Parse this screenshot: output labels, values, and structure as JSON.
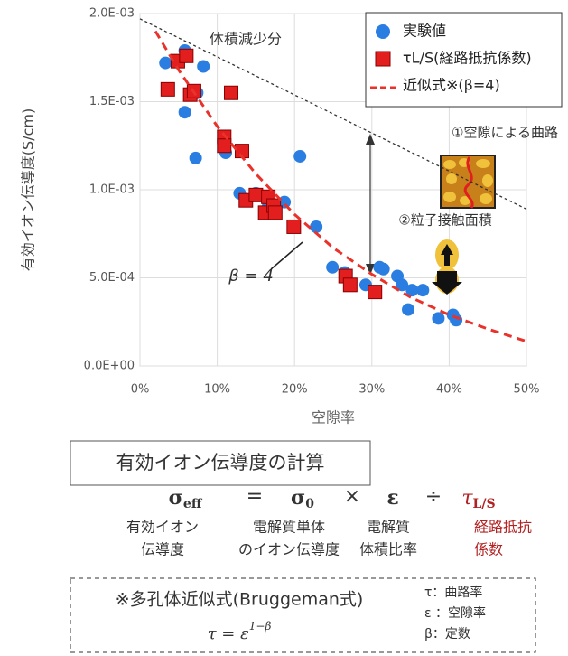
{
  "chart_data": {
    "type": "scatter",
    "y_label": "有効イオン伝導度(S/cm)",
    "x_label": "空隙率",
    "xlim": [
      0,
      50
    ],
    "ylim": [
      0,
      0.002
    ],
    "xticks": [
      {
        "value": 0,
        "label": "0%"
      },
      {
        "value": 10,
        "label": "10%"
      },
      {
        "value": 20,
        "label": "20%"
      },
      {
        "value": 30,
        "label": "30%"
      },
      {
        "value": 40,
        "label": "40%"
      },
      {
        "value": 50,
        "label": "50%"
      }
    ],
    "yticks": [
      {
        "value": 0,
        "label": "0.0E+00"
      },
      {
        "value": 0.0005,
        "label": "5.0E-04"
      },
      {
        "value": 0.001,
        "label": "1.0E-03"
      },
      {
        "value": 0.0015,
        "label": "1.5E-03"
      },
      {
        "value": 0.002,
        "label": "2.0E-03"
      }
    ],
    "grid": true,
    "legend": "top-right",
    "series": [
      {
        "name": "実験値",
        "color": "#2a7de1",
        "marker": "circle",
        "x": [
          3.3,
          5.8,
          8.2,
          6.7,
          7.4,
          5.8,
          7.2,
          11.1,
          12.9,
          15.0,
          16.6,
          18.7,
          20.7,
          22.8,
          24.9,
          26.5,
          29.2,
          31.0,
          31.5,
          33.3,
          33.9,
          35.2,
          36.6,
          34.7,
          38.6,
          40.5,
          40.9
        ],
        "values": [
          0.00172,
          0.00179,
          0.0017,
          0.00156,
          0.00155,
          0.00144,
          0.00118,
          0.00121,
          0.00098,
          0.00098,
          0.00091,
          0.00093,
          0.00119,
          0.00079,
          0.00056,
          0.00053,
          0.00046,
          0.00056,
          0.00055,
          0.00051,
          0.00046,
          0.00043,
          0.00043,
          0.00032,
          0.00027,
          0.00029,
          0.00026
        ]
      },
      {
        "name": "τL/S(経路抵抗係数)",
        "color": "#e21e1e",
        "marker": "square",
        "x": [
          3.6,
          4.9,
          6.0,
          6.5,
          7.0,
          11.8,
          10.9,
          10.9,
          13.2,
          13.7,
          15.0,
          16.2,
          16.6,
          17.3,
          17.5,
          19.9,
          26.6,
          27.2,
          30.4
        ],
        "values": [
          0.00157,
          0.00173,
          0.00176,
          0.00154,
          0.00156,
          0.00155,
          0.0013,
          0.00125,
          0.00122,
          0.00094,
          0.00097,
          0.00087,
          0.00096,
          0.00091,
          0.00087,
          0.00079,
          0.00051,
          0.00046,
          0.00042
        ]
      },
      {
        "name": "近似式※(β=4)",
        "color": "#e8322a",
        "marker": "line",
        "x": [
          2,
          5,
          10,
          15,
          20,
          25,
          30,
          35,
          40,
          45,
          50
        ],
        "values": [
          0.0019,
          0.00168,
          0.00136,
          0.00109,
          0.00086,
          0.00067,
          0.00052,
          0.00039,
          0.00029,
          0.00021,
          0.00014
        ]
      }
    ],
    "reference_line": {
      "label": "体積減少分",
      "x": [
        0,
        50
      ],
      "values": [
        0.00197,
        0.00089
      ]
    },
    "annotations": [
      "①空隙による曲路",
      "②粒子接触面積",
      "β = 4"
    ]
  },
  "calculation": {
    "title": "有効イオン伝導度の計算",
    "terms": [
      {
        "symbol": "σ",
        "sub": "eff"
      },
      {
        "symbol": "σ",
        "sub": "0"
      },
      {
        "symbol": "ε"
      },
      {
        "symbol": "τ",
        "sub": "L/S"
      }
    ],
    "operators": [
      "=",
      "×",
      "÷"
    ],
    "descriptions": [
      [
        "有効イオン",
        "伝導度"
      ],
      [
        "電解質単体",
        "のイオン伝導度"
      ],
      [
        "電解質",
        "体積比率"
      ],
      [
        "経路抵抗",
        "係数"
      ]
    ],
    "note_title": "※多孔体近似式(Bruggeman式)",
    "note_formula": "τ = ε",
    "note_exponent": "1−β",
    "symbols": [
      "τ：曲路率",
      "ε ：空隙率",
      "β：定数"
    ]
  }
}
